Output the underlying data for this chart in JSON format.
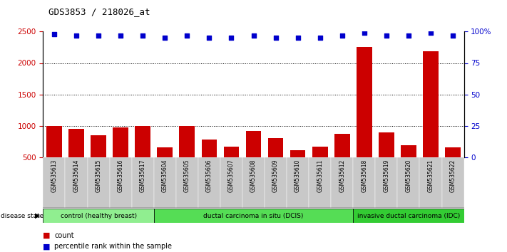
{
  "title": "GDS3853 / 218026_at",
  "samples": [
    "GSM535613",
    "GSM535614",
    "GSM535615",
    "GSM535616",
    "GSM535617",
    "GSM535604",
    "GSM535605",
    "GSM535606",
    "GSM535607",
    "GSM535608",
    "GSM535609",
    "GSM535610",
    "GSM535611",
    "GSM535612",
    "GSM535618",
    "GSM535619",
    "GSM535620",
    "GSM535621",
    "GSM535622"
  ],
  "counts": [
    1005,
    950,
    855,
    975,
    1000,
    660,
    1005,
    785,
    670,
    925,
    810,
    615,
    670,
    875,
    2250,
    895,
    700,
    2185,
    660
  ],
  "percentile_ranks": [
    98,
    97,
    97,
    97,
    97,
    95,
    97,
    95,
    95,
    97,
    95,
    95,
    95,
    97,
    99,
    97,
    97,
    99,
    97
  ],
  "groups": [
    {
      "label": "control (healthy breast)",
      "start": 0,
      "end": 5,
      "color": "#90ee90"
    },
    {
      "label": "ductal carcinoma in situ (DCIS)",
      "start": 5,
      "end": 14,
      "color": "#55dd55"
    },
    {
      "label": "invasive ductal carcinoma (IDC)",
      "start": 14,
      "end": 19,
      "color": "#33cc33"
    }
  ],
  "ylim_left": [
    500,
    2500
  ],
  "ylim_right": [
    0,
    100
  ],
  "yticks_left": [
    500,
    1000,
    1500,
    2000,
    2500
  ],
  "yticks_right": [
    0,
    25,
    50,
    75,
    100
  ],
  "ytick_labels_right": [
    "0",
    "25",
    "50",
    "75",
    "100%"
  ],
  "bar_color": "#cc0000",
  "dot_color": "#0000cc",
  "grid_color": "black",
  "legend_count_color": "#cc0000",
  "legend_pct_color": "#0000cc",
  "xlabel_color": "#cc0000",
  "ylabel_right_color": "#0000cc",
  "tick_area_bg": "#c8c8c8",
  "title_font": 9
}
